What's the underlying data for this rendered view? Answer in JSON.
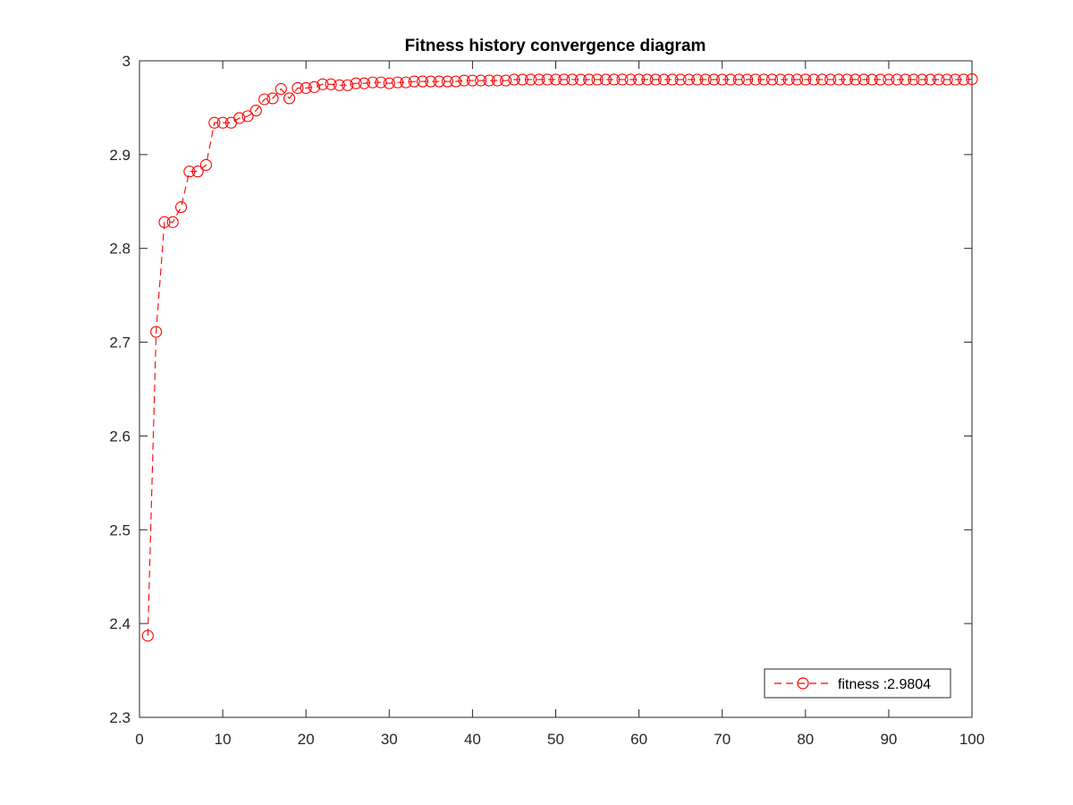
{
  "chart_data": {
    "type": "line",
    "title": "Fitness history convergence diagram",
    "xlabel": "",
    "ylabel": "",
    "xlim": [
      0,
      100
    ],
    "ylim": [
      2.3,
      3.0
    ],
    "xticks": [
      0,
      10,
      20,
      30,
      40,
      50,
      60,
      70,
      80,
      90,
      100
    ],
    "yticks": [
      2.3,
      2.4,
      2.5,
      2.6,
      2.7,
      2.8,
      2.9,
      3.0
    ],
    "xtick_labels": [
      "0",
      "10",
      "20",
      "30",
      "40",
      "50",
      "60",
      "70",
      "80",
      "90",
      "100"
    ],
    "ytick_labels": [
      "2.3",
      "2.4",
      "2.5",
      "2.6",
      "2.7",
      "2.8",
      "2.9",
      "3"
    ],
    "grid": false,
    "legend_position": "bottom-right",
    "series": [
      {
        "name": "fitness :2.9804",
        "color": "#ff0000",
        "line_style": "dashed",
        "marker": "open-circle",
        "x": [
          1,
          2,
          3,
          4,
          5,
          6,
          7,
          8,
          9,
          10,
          11,
          12,
          13,
          14,
          15,
          16,
          17,
          18,
          19,
          20,
          21,
          22,
          23,
          24,
          25,
          26,
          27,
          28,
          29,
          30,
          31,
          32,
          33,
          34,
          35,
          36,
          37,
          38,
          39,
          40,
          41,
          42,
          43,
          44,
          45,
          46,
          47,
          48,
          49,
          50,
          51,
          52,
          53,
          54,
          55,
          56,
          57,
          58,
          59,
          60,
          61,
          62,
          63,
          64,
          65,
          66,
          67,
          68,
          69,
          70,
          71,
          72,
          73,
          74,
          75,
          76,
          77,
          78,
          79,
          80,
          81,
          82,
          83,
          84,
          85,
          86,
          87,
          88,
          89,
          90,
          91,
          92,
          93,
          94,
          95,
          96,
          97,
          98,
          99,
          100
        ],
        "y": [
          2.387,
          2.711,
          2.828,
          2.828,
          2.844,
          2.882,
          2.882,
          2.889,
          2.934,
          2.934,
          2.934,
          2.939,
          2.941,
          2.947,
          2.959,
          2.96,
          2.97,
          2.96,
          2.971,
          2.971,
          2.972,
          2.975,
          2.975,
          2.974,
          2.974,
          2.976,
          2.976,
          2.977,
          2.977,
          2.976,
          2.977,
          2.977,
          2.978,
          2.978,
          2.978,
          2.978,
          2.978,
          2.978,
          2.979,
          2.979,
          2.979,
          2.979,
          2.979,
          2.979,
          2.98,
          2.98,
          2.98,
          2.98,
          2.98,
          2.98,
          2.98,
          2.98,
          2.98,
          2.98,
          2.98,
          2.98,
          2.98,
          2.98,
          2.98,
          2.98,
          2.98,
          2.98,
          2.98,
          2.98,
          2.98,
          2.98,
          2.98,
          2.98,
          2.98,
          2.98,
          2.98,
          2.98,
          2.98,
          2.98,
          2.98,
          2.98,
          2.98,
          2.98,
          2.98,
          2.98,
          2.98,
          2.98,
          2.98,
          2.98,
          2.98,
          2.98,
          2.98,
          2.98,
          2.98,
          2.98,
          2.98,
          2.98,
          2.98,
          2.98,
          2.98,
          2.98,
          2.98,
          2.98,
          2.98,
          2.9804
        ]
      }
    ]
  }
}
